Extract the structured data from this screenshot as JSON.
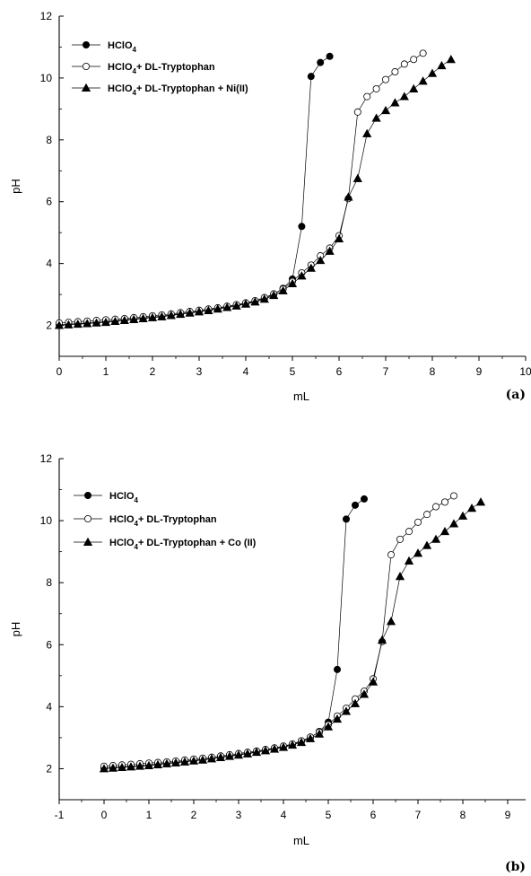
{
  "chart_data": [
    {
      "type": "line",
      "panel_label": "(a)",
      "xlabel": "mL",
      "ylabel": "pH",
      "xlim": [
        0,
        10
      ],
      "ylim": [
        1,
        12
      ],
      "xticks": [
        0,
        1,
        2,
        3,
        4,
        5,
        6,
        7,
        8,
        9,
        10
      ],
      "yticks": [
        2,
        4,
        6,
        8,
        10,
        12
      ],
      "grid": false,
      "legend_position": "top-left",
      "series": [
        {
          "name_parts": [
            "HClO",
            "4",
            ""
          ],
          "marker": "filled-circle",
          "x": [
            0,
            0.2,
            0.4,
            0.6,
            0.8,
            1.0,
            1.2,
            1.4,
            1.6,
            1.8,
            2.0,
            2.2,
            2.4,
            2.6,
            2.8,
            3.0,
            3.2,
            3.4,
            3.6,
            3.8,
            4.0,
            4.2,
            4.4,
            4.6,
            4.8,
            5.0,
            5.2,
            5.4,
            5.6,
            5.8
          ],
          "y": [
            2.02,
            2.04,
            2.06,
            2.08,
            2.1,
            2.12,
            2.15,
            2.18,
            2.21,
            2.24,
            2.27,
            2.3,
            2.34,
            2.38,
            2.42,
            2.46,
            2.5,
            2.55,
            2.6,
            2.65,
            2.71,
            2.78,
            2.88,
            3.0,
            3.2,
            3.5,
            5.2,
            10.05,
            10.5,
            10.7
          ]
        },
        {
          "name_parts": [
            "HClO",
            "4",
            "+ DL-Tryptophan"
          ],
          "marker": "open-circle",
          "x": [
            0,
            0.2,
            0.4,
            0.6,
            0.8,
            1.0,
            1.2,
            1.4,
            1.6,
            1.8,
            2.0,
            2.2,
            2.4,
            2.6,
            2.8,
            3.0,
            3.2,
            3.4,
            3.6,
            3.8,
            4.0,
            4.2,
            4.4,
            4.6,
            4.8,
            5.0,
            5.2,
            5.4,
            5.6,
            5.8,
            6.0,
            6.2,
            6.4,
            6.6,
            6.8,
            7.0,
            7.2,
            7.4,
            7.6,
            7.8
          ],
          "y": [
            2.08,
            2.1,
            2.12,
            2.14,
            2.16,
            2.18,
            2.2,
            2.22,
            2.25,
            2.28,
            2.31,
            2.34,
            2.37,
            2.41,
            2.45,
            2.49,
            2.53,
            2.57,
            2.62,
            2.67,
            2.73,
            2.8,
            2.9,
            3.02,
            3.18,
            3.42,
            3.7,
            3.95,
            4.25,
            4.5,
            4.9,
            6.1,
            8.9,
            9.4,
            9.65,
            9.95,
            10.2,
            10.45,
            10.6,
            10.8
          ]
        },
        {
          "name_parts": [
            "HClO",
            "4",
            "+ DL-Tryptophan + Ni(II)"
          ],
          "marker": "filled-triangle",
          "x": [
            0,
            0.2,
            0.4,
            0.6,
            0.8,
            1.0,
            1.2,
            1.4,
            1.6,
            1.8,
            2.0,
            2.2,
            2.4,
            2.6,
            2.8,
            3.0,
            3.2,
            3.4,
            3.6,
            3.8,
            4.0,
            4.2,
            4.4,
            4.6,
            4.8,
            5.0,
            5.2,
            5.4,
            5.6,
            5.8,
            6.0,
            6.2,
            6.4,
            6.6,
            6.8,
            7.0,
            7.2,
            7.4,
            7.6,
            7.8,
            8.0,
            8.2,
            8.4
          ],
          "y": [
            2.0,
            2.02,
            2.04,
            2.06,
            2.08,
            2.1,
            2.13,
            2.16,
            2.19,
            2.22,
            2.25,
            2.28,
            2.32,
            2.36,
            2.4,
            2.44,
            2.48,
            2.53,
            2.58,
            2.63,
            2.69,
            2.76,
            2.85,
            2.97,
            3.12,
            3.35,
            3.6,
            3.85,
            4.1,
            4.4,
            4.8,
            6.15,
            6.75,
            8.2,
            8.7,
            8.95,
            9.2,
            9.4,
            9.65,
            9.9,
            10.15,
            10.4,
            10.6
          ]
        }
      ]
    },
    {
      "type": "line",
      "panel_label": "(b)",
      "xlabel": "mL",
      "ylabel": "pH",
      "xlim": [
        -1,
        9.4
      ],
      "ylim": [
        1,
        12
      ],
      "xticks": [
        -1,
        0,
        1,
        2,
        3,
        4,
        5,
        6,
        7,
        8,
        9
      ],
      "yticks": [
        2,
        4,
        6,
        8,
        10,
        12
      ],
      "grid": false,
      "legend_position": "top-left",
      "series": [
        {
          "name_parts": [
            "HClO",
            "4",
            ""
          ],
          "marker": "filled-circle",
          "x": [
            0,
            0.2,
            0.4,
            0.6,
            0.8,
            1.0,
            1.2,
            1.4,
            1.6,
            1.8,
            2.0,
            2.2,
            2.4,
            2.6,
            2.8,
            3.0,
            3.2,
            3.4,
            3.6,
            3.8,
            4.0,
            4.2,
            4.4,
            4.6,
            4.8,
            5.0,
            5.2,
            5.4,
            5.6,
            5.8
          ],
          "y": [
            2.02,
            2.04,
            2.06,
            2.08,
            2.1,
            2.12,
            2.15,
            2.18,
            2.21,
            2.24,
            2.27,
            2.3,
            2.34,
            2.38,
            2.42,
            2.46,
            2.5,
            2.55,
            2.6,
            2.65,
            2.71,
            2.78,
            2.88,
            3.0,
            3.2,
            3.5,
            5.2,
            10.05,
            10.5,
            10.7
          ]
        },
        {
          "name_parts": [
            "HClO",
            "4",
            "+ DL-Tryptophan"
          ],
          "marker": "open-circle",
          "x": [
            0,
            0.2,
            0.4,
            0.6,
            0.8,
            1.0,
            1.2,
            1.4,
            1.6,
            1.8,
            2.0,
            2.2,
            2.4,
            2.6,
            2.8,
            3.0,
            3.2,
            3.4,
            3.6,
            3.8,
            4.0,
            4.2,
            4.4,
            4.6,
            4.8,
            5.0,
            5.2,
            5.4,
            5.6,
            5.8,
            6.0,
            6.2,
            6.4,
            6.6,
            6.8,
            7.0,
            7.2,
            7.4,
            7.6,
            7.8
          ],
          "y": [
            2.08,
            2.1,
            2.12,
            2.14,
            2.16,
            2.18,
            2.2,
            2.22,
            2.25,
            2.28,
            2.31,
            2.34,
            2.37,
            2.41,
            2.45,
            2.49,
            2.53,
            2.57,
            2.62,
            2.67,
            2.73,
            2.8,
            2.9,
            3.02,
            3.18,
            3.42,
            3.7,
            3.95,
            4.25,
            4.5,
            4.9,
            6.1,
            8.9,
            9.4,
            9.65,
            9.95,
            10.2,
            10.45,
            10.6,
            10.8
          ]
        },
        {
          "name_parts": [
            "HClO",
            "4",
            "+ DL-Tryptophan + Co (II)"
          ],
          "marker": "filled-triangle",
          "x": [
            0,
            0.2,
            0.4,
            0.6,
            0.8,
            1.0,
            1.2,
            1.4,
            1.6,
            1.8,
            2.0,
            2.2,
            2.4,
            2.6,
            2.8,
            3.0,
            3.2,
            3.4,
            3.6,
            3.8,
            4.0,
            4.2,
            4.4,
            4.6,
            4.8,
            5.0,
            5.2,
            5.4,
            5.6,
            5.8,
            6.0,
            6.2,
            6.4,
            6.6,
            6.8,
            7.0,
            7.2,
            7.4,
            7.6,
            7.8,
            8.0,
            8.2,
            8.4
          ],
          "y": [
            2.0,
            2.02,
            2.04,
            2.06,
            2.08,
            2.1,
            2.13,
            2.16,
            2.19,
            2.22,
            2.25,
            2.28,
            2.32,
            2.36,
            2.4,
            2.44,
            2.48,
            2.53,
            2.58,
            2.63,
            2.69,
            2.76,
            2.85,
            2.97,
            3.12,
            3.35,
            3.6,
            3.85,
            4.1,
            4.4,
            4.8,
            6.15,
            6.75,
            8.2,
            8.7,
            8.95,
            9.2,
            9.4,
            9.65,
            9.9,
            10.15,
            10.4,
            10.6
          ]
        }
      ]
    }
  ]
}
